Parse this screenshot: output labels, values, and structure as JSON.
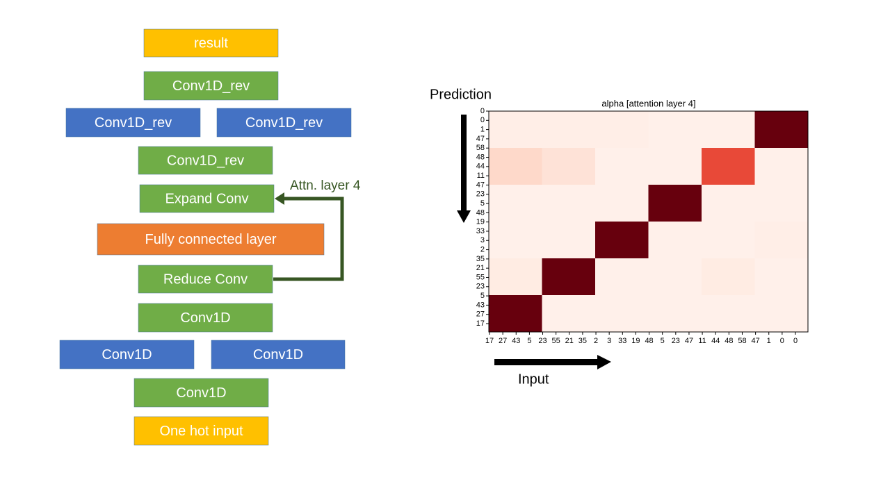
{
  "diagram": {
    "blocks": [
      {
        "label": "result",
        "color": "#ffc000"
      },
      {
        "label": "Conv1D_rev",
        "color": "#70ad47"
      },
      {
        "label": "Conv1D_rev",
        "color": "#4472c4"
      },
      {
        "label": "Conv1D_rev",
        "color": "#4472c4"
      },
      {
        "label": "Conv1D_rev",
        "color": "#70ad47"
      },
      {
        "label": "Expand Conv",
        "color": "#70ad47"
      },
      {
        "label": "Fully connected layer",
        "color": "#ed7d31"
      },
      {
        "label": "Reduce Conv",
        "color": "#70ad47"
      },
      {
        "label": "Conv1D",
        "color": "#70ad47"
      },
      {
        "label": "Conv1D",
        "color": "#4472c4"
      },
      {
        "label": "Conv1D",
        "color": "#4472c4"
      },
      {
        "label": "Conv1D",
        "color": "#70ad47"
      },
      {
        "label": "One hot input",
        "color": "#ffc000"
      }
    ],
    "attention_link": {
      "label": "Attn. layer 4",
      "color": "#375623"
    }
  },
  "heatmap": {
    "title": "alpha [attention layer 4]",
    "y_axis_label": "Prediction",
    "x_axis_label": "Input",
    "colormap": "Reds",
    "row_labels": [
      "0",
      "0",
      "1",
      "47",
      "58",
      "48",
      "44",
      "11",
      "47",
      "23",
      "5",
      "48",
      "19",
      "33",
      "3",
      "2",
      "35",
      "21",
      "55",
      "23",
      "5",
      "43",
      "27",
      "17"
    ],
    "column_labels": [
      "17",
      "27",
      "43",
      "5",
      "23",
      "55",
      "21",
      "35",
      "2",
      "3",
      "33",
      "19",
      "48",
      "5",
      "23",
      "47",
      "11",
      "44",
      "48",
      "58",
      "47",
      "1",
      "0",
      "0"
    ],
    "values": [
      [
        0.03,
        0.03,
        0.03,
        0.02,
        0.02,
        1.0
      ],
      [
        0.12,
        0.08,
        0.02,
        0.02,
        0.6,
        0.02
      ],
      [
        0.02,
        0.02,
        0.02,
        1.0,
        0.02,
        0.02
      ],
      [
        0.02,
        0.02,
        1.0,
        0.02,
        0.02,
        0.03
      ],
      [
        0.04,
        1.0,
        0.02,
        0.02,
        0.04,
        0.02
      ],
      [
        1.0,
        0.02,
        0.02,
        0.02,
        0.02,
        0.02
      ]
    ]
  }
}
